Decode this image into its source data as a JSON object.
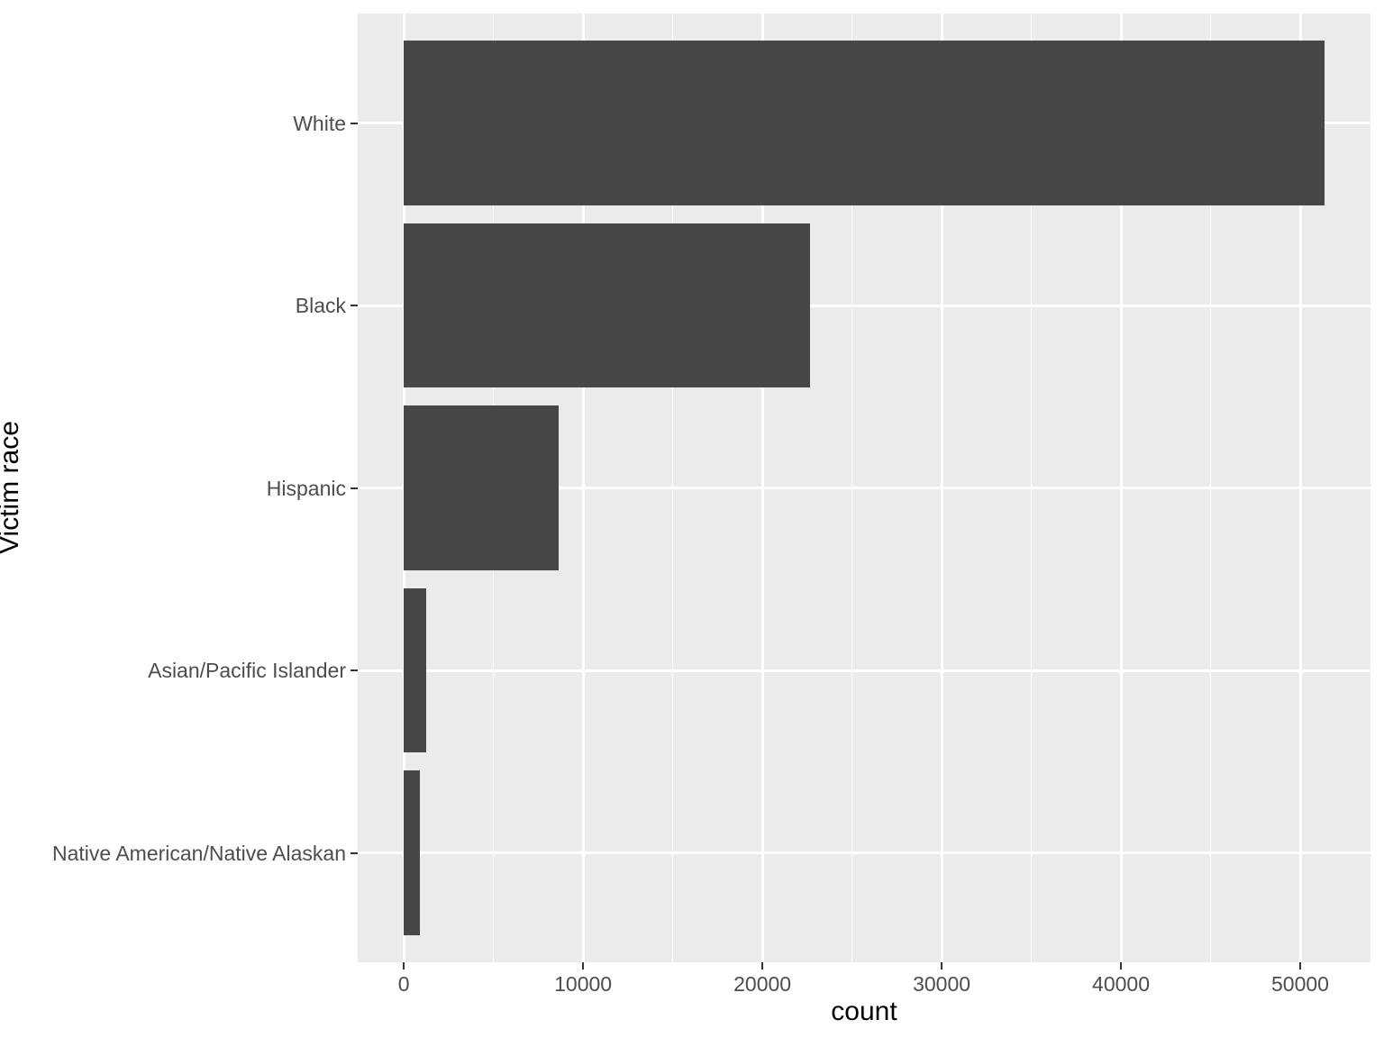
{
  "chart_data": {
    "type": "bar",
    "orientation": "horizontal",
    "title": "",
    "xlabel": "count",
    "ylabel": "Victim race",
    "categories": [
      "White",
      "Black",
      "Hispanic",
      "Asian/Pacific Islander",
      "Native American/Native Alaskan"
    ],
    "values": [
      51350,
      22650,
      8650,
      1250,
      900
    ],
    "x_tick_values": [
      0,
      10000,
      20000,
      30000,
      40000,
      50000
    ],
    "x_tick_labels": [
      "0",
      "10000",
      "20000",
      "30000",
      "40000",
      "50000"
    ],
    "x_minor_tick_values": [
      5000,
      15000,
      25000,
      35000,
      45000
    ],
    "xlim": [
      -2571,
      53920
    ],
    "bar_width_fraction": 0.9,
    "grid": "major-and-minor-x-major-y",
    "legend": "none",
    "colors": {
      "bar": "#474747",
      "panel_background": "#EBEBEB",
      "gridline": "#FFFFFF",
      "tick_label": "#4D4D4D",
      "axis_title": "#000000",
      "tick_mark": "#333333",
      "figure_background": "#FFFFFF"
    }
  }
}
